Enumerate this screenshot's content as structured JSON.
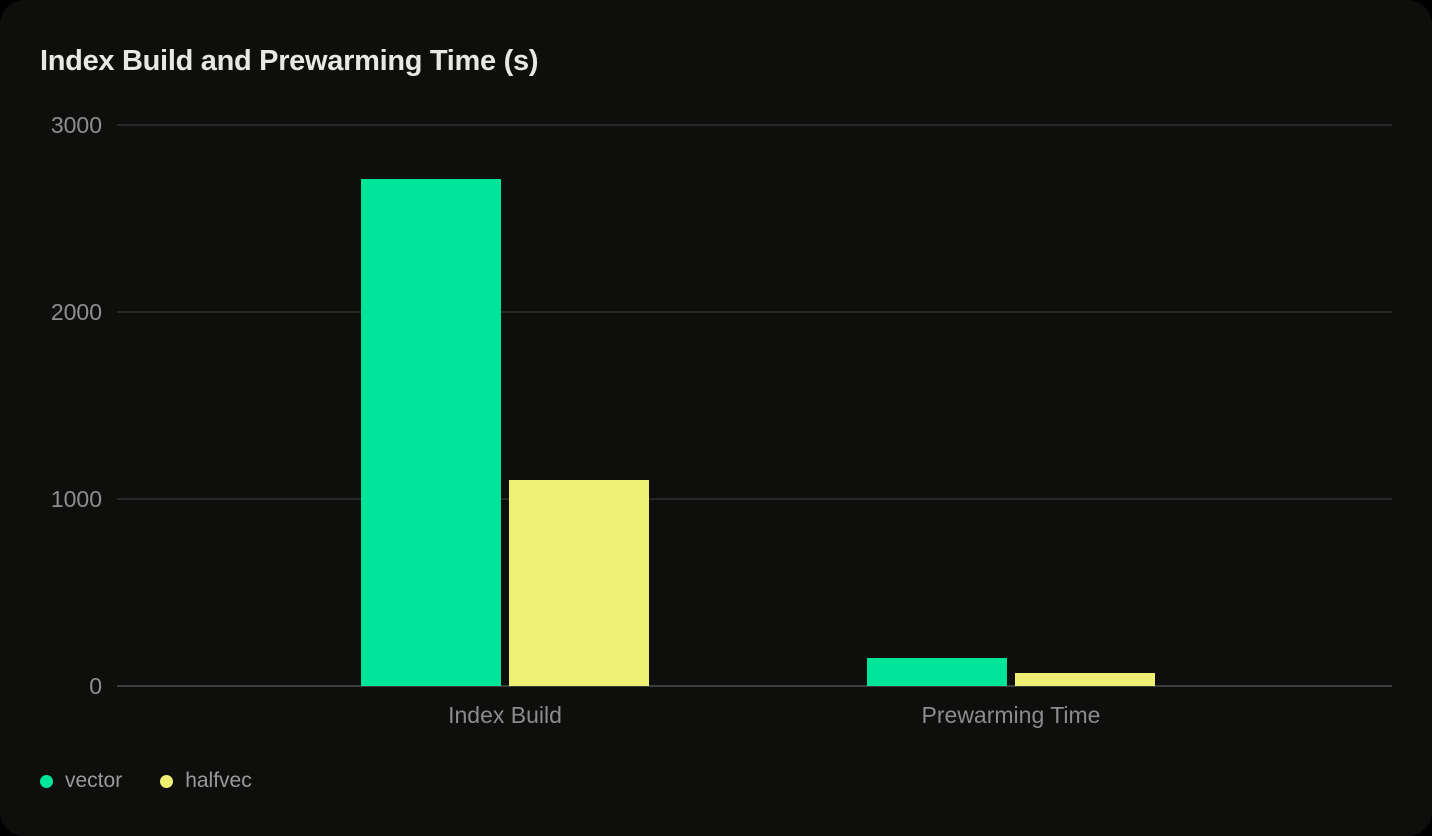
{
  "title": "Index Build and Prewarming Time (s)",
  "colors": {
    "background": "#0e0e0d",
    "vector": "#00e599",
    "halfvec": "#eef074",
    "gridline": "#272727",
    "axis_text": "#8e8e8e",
    "title_text": "#e7e7e4"
  },
  "legend": {
    "items": [
      {
        "label": "vector",
        "color": "#00e599"
      },
      {
        "label": "halfvec",
        "color": "#eef074"
      }
    ]
  },
  "chart_data": {
    "type": "bar",
    "title": "Index Build and Prewarming Time (s)",
    "categories": [
      "Index Build",
      "Prewarming Time"
    ],
    "series": [
      {
        "name": "vector",
        "color": "#00e599",
        "values": [
          2710,
          150
        ]
      },
      {
        "name": "halfvec",
        "color": "#eef074",
        "values": [
          1100,
          70
        ]
      }
    ],
    "xlabel": "",
    "ylabel": "",
    "ylim": [
      0,
      3000
    ],
    "yticks": [
      0,
      1000,
      2000,
      3000
    ],
    "grid": true,
    "legend_position": "bottom-left"
  }
}
